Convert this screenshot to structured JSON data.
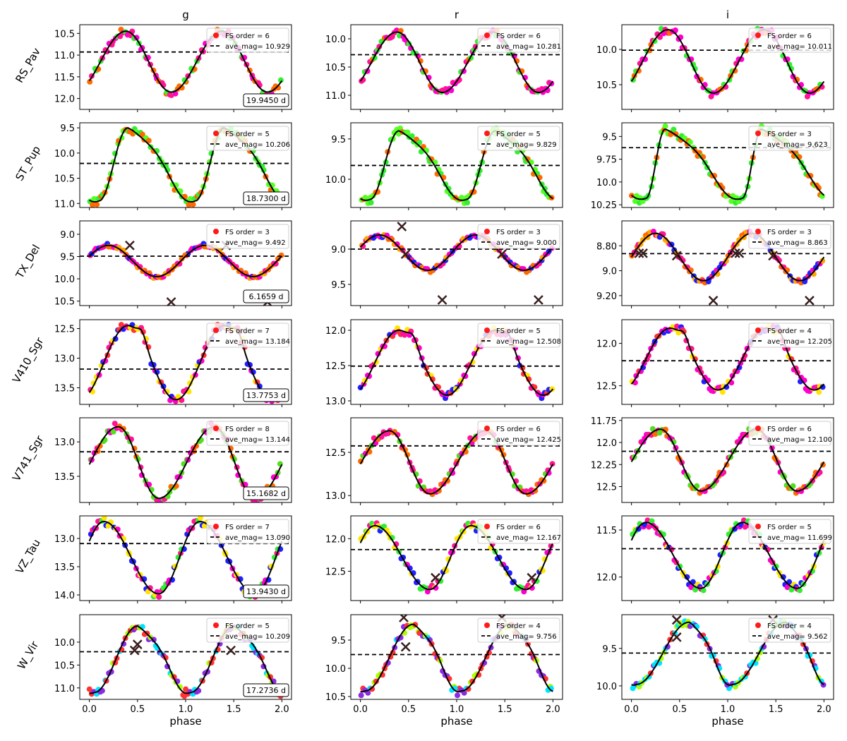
{
  "figure": {
    "xlabel": "phase"
  },
  "chart_data": {
    "type": "scatter",
    "columns": [
      "g",
      "r",
      "i"
    ],
    "rows": [
      "RS_Pav",
      "ST_Pup",
      "TX_Del",
      "V410_Sgr",
      "V741_Sgr",
      "VZ_Tau",
      "W_Vir"
    ],
    "xlabel": "phase",
    "xlim": [
      -0.1,
      2.1
    ],
    "xticks": [
      0.0,
      0.5,
      1.0,
      1.5,
      2.0
    ],
    "y_inverted": true,
    "legend_labels": [
      "FS order = ",
      "ave_mag= "
    ],
    "panels": [
      {
        "star": "RS_Pav",
        "band": "g",
        "fs_order": 6,
        "ave_mag": "10.929",
        "period": "19.9450 d",
        "ylim": [
          10.3,
          12.25
        ],
        "yticks": [
          10.5,
          11.0,
          11.5,
          12.0
        ],
        "min_mag": 10.45,
        "max_mag": 11.85,
        "min_phase": 0.38,
        "max_phase": 0.85,
        "curve": "rr",
        "colors": [
          "#ff1493",
          "#ff6a00",
          "#33ee33",
          "#ff00cc"
        ],
        "outliers": []
      },
      {
        "star": "RS_Pav",
        "band": "r",
        "fs_order": 6,
        "ave_mag": "10.281",
        "period": "",
        "ylim": [
          9.75,
          11.25
        ],
        "yticks": [
          10.0,
          10.5,
          11.0
        ],
        "min_mag": 9.88,
        "max_mag": 10.95,
        "min_phase": 0.38,
        "max_phase": 0.85,
        "curve": "rr",
        "colors": [
          "#ff1493",
          "#ff6a00",
          "#33ee33",
          "#ff00cc"
        ],
        "outliers": []
      },
      {
        "star": "RS_Pav",
        "band": "i",
        "fs_order": 6,
        "ave_mag": "10.011",
        "period": "",
        "ylim": [
          9.65,
          10.85
        ],
        "yticks": [
          10.0,
          10.5
        ],
        "min_mag": 9.72,
        "max_mag": 10.62,
        "min_phase": 0.38,
        "max_phase": 0.85,
        "curve": "rr",
        "colors": [
          "#ff1493",
          "#ff6a00",
          "#33ee33",
          "#ff00cc"
        ],
        "outliers": []
      },
      {
        "star": "ST_Pup",
        "band": "g",
        "fs_order": 5,
        "ave_mag": "10.206",
        "period": "18.7300 d",
        "ylim": [
          9.4,
          11.08
        ],
        "yticks": [
          9.5,
          10.0,
          10.5,
          11.0
        ],
        "min_mag": 9.5,
        "max_mag": 10.95,
        "min_phase": 0.4,
        "max_phase": 0.1,
        "curve": "saw",
        "colors": [
          "#33ee33",
          "#ff6a00",
          "#55ff22"
        ],
        "outliers": []
      },
      {
        "star": "ST_Pup",
        "band": "r",
        "fs_order": 5,
        "ave_mag": "9.829",
        "period": "",
        "ylim": [
          9.3,
          10.35
        ],
        "yticks": [
          9.5,
          10.0
        ],
        "min_mag": 9.4,
        "max_mag": 10.25,
        "min_phase": 0.4,
        "max_phase": 0.1,
        "curve": "saw",
        "colors": [
          "#33ee33",
          "#ff6a00",
          "#55ff22"
        ],
        "outliers": []
      },
      {
        "star": "ST_Pup",
        "band": "i",
        "fs_order": 3,
        "ave_mag": "9.623",
        "period": "",
        "ylim": [
          9.35,
          10.28
        ],
        "yticks": [
          9.5,
          9.75,
          10.0,
          10.25
        ],
        "min_mag": 9.42,
        "max_mag": 10.18,
        "min_phase": 0.35,
        "max_phase": 0.15,
        "curve": "saw",
        "colors": [
          "#33ee33",
          "#ff6a00",
          "#55ff22"
        ],
        "outliers": []
      },
      {
        "star": "TX_Del",
        "band": "g",
        "fs_order": 3,
        "ave_mag": "9.492",
        "period": "6.1659 d",
        "ylim": [
          8.7,
          10.6
        ],
        "yticks": [
          9.0,
          9.5,
          10.0,
          10.5
        ],
        "min_mag": 9.25,
        "max_mag": 9.95,
        "min_phase": 0.2,
        "max_phase": 0.85,
        "curve": "sine",
        "colors": [
          "#ff1493",
          "#ff6a00",
          "#ff00cc",
          "#ffa500",
          "#2020ff"
        ],
        "outliers": [
          [
            0.42,
            9.25
          ],
          [
            0.85,
            10.52
          ],
          [
            1.42,
            9.25
          ],
          [
            1.85,
            10.52
          ]
        ]
      },
      {
        "star": "TX_Del",
        "band": "r",
        "fs_order": 3,
        "ave_mag": "9.000",
        "period": "",
        "ylim": [
          8.6,
          9.8
        ],
        "yticks": [
          9.0,
          9.5
        ],
        "min_mag": 8.8,
        "max_mag": 9.3,
        "min_phase": 0.2,
        "max_phase": 0.85,
        "curve": "sine",
        "colors": [
          "#ff1493",
          "#ff6a00",
          "#ff00cc",
          "#ffa500",
          "#2020ff"
        ],
        "outliers": [
          [
            0.43,
            8.68
          ],
          [
            0.47,
            9.07
          ],
          [
            0.85,
            9.72
          ],
          [
            1.47,
            9.07
          ],
          [
            1.85,
            9.72
          ]
        ]
      },
      {
        "star": "TX_Del",
        "band": "i",
        "fs_order": 3,
        "ave_mag": "8.863",
        "period": "",
        "ylim": [
          8.6,
          9.28
        ],
        "yticks": [
          8.8,
          9.0,
          9.2
        ],
        "min_mag": 8.7,
        "max_mag": 9.08,
        "min_phase": 0.25,
        "max_phase": 0.85,
        "curve": "sine",
        "colors": [
          "#ff1493",
          "#ff6a00",
          "#ff00cc",
          "#ffa500",
          "#2020ff"
        ],
        "outliers": [
          [
            0.08,
            8.86
          ],
          [
            0.12,
            8.86
          ],
          [
            0.47,
            8.88
          ],
          [
            0.85,
            9.24
          ],
          [
            1.08,
            8.86
          ],
          [
            1.12,
            8.86
          ],
          [
            1.47,
            8.88
          ],
          [
            1.85,
            9.24
          ]
        ]
      },
      {
        "star": "V410_Sgr",
        "band": "g",
        "fs_order": 7,
        "ave_mag": "13.184",
        "period": "13.7753 d",
        "ylim": [
          12.35,
          13.78
        ],
        "yticks": [
          12.5,
          13.0,
          13.5
        ],
        "min_mag": 12.45,
        "max_mag": 13.7,
        "min_phase": 0.4,
        "max_phase": 0.95,
        "curve": "bump",
        "colors": [
          "#ff1493",
          "#ffe600",
          "#ff00cc",
          "#2020ff",
          "#ff3333"
        ],
        "outliers": []
      },
      {
        "star": "V410_Sgr",
        "band": "r",
        "fs_order": 5,
        "ave_mag": "12.508",
        "period": "",
        "ylim": [
          11.85,
          13.05
        ],
        "yticks": [
          12.0,
          12.5,
          13.0
        ],
        "min_mag": 12.0,
        "max_mag": 12.92,
        "min_phase": 0.4,
        "max_phase": 0.95,
        "curve": "bump",
        "colors": [
          "#ff1493",
          "#ffe600",
          "#ff00cc",
          "#2020ff",
          "#ff3333"
        ],
        "outliers": []
      },
      {
        "star": "V410_Sgr",
        "band": "i",
        "fs_order": 4,
        "ave_mag": "12.205",
        "period": "",
        "ylim": [
          11.72,
          12.72
        ],
        "yticks": [
          12.0,
          12.5
        ],
        "min_mag": 11.82,
        "max_mag": 12.55,
        "min_phase": 0.4,
        "max_phase": 0.95,
        "curve": "bump",
        "colors": [
          "#ff1493",
          "#ffe600",
          "#ff00cc",
          "#2020ff",
          "#ff3333"
        ],
        "outliers": []
      },
      {
        "star": "V741_Sgr",
        "band": "g",
        "fs_order": 8,
        "ave_mag": "13.144",
        "period": "15.1682 d",
        "ylim": [
          12.65,
          13.88
        ],
        "yticks": [
          13.0,
          13.5
        ],
        "min_mag": 12.78,
        "max_mag": 13.82,
        "min_phase": 0.3,
        "max_phase": 0.72,
        "curve": "rr",
        "colors": [
          "#ff1493",
          "#ff6a00",
          "#ff00cc",
          "#55dd22"
        ],
        "outliers": []
      },
      {
        "star": "V741_Sgr",
        "band": "r",
        "fs_order": 6,
        "ave_mag": "12.425",
        "period": "",
        "ylim": [
          12.1,
          13.08
        ],
        "yticks": [
          12.5,
          13.0
        ],
        "min_mag": 12.25,
        "max_mag": 12.98,
        "min_phase": 0.3,
        "max_phase": 0.72,
        "curve": "rr",
        "colors": [
          "#ff1493",
          "#ff6a00",
          "#ff00cc",
          "#55dd22"
        ],
        "outliers": []
      },
      {
        "star": "V741_Sgr",
        "band": "i",
        "fs_order": 6,
        "ave_mag": "12.100",
        "period": "",
        "ylim": [
          11.72,
          12.68
        ],
        "yticks": [
          11.75,
          12.0,
          12.25,
          12.5
        ],
        "min_mag": 11.85,
        "max_mag": 12.55,
        "min_phase": 0.3,
        "max_phase": 0.72,
        "curve": "rr",
        "colors": [
          "#ff1493",
          "#ff6a00",
          "#ff00cc",
          "#55dd22"
        ],
        "outliers": []
      },
      {
        "star": "VZ_Tau",
        "band": "g",
        "fs_order": 7,
        "ave_mag": "13.090",
        "period": "13.9430 d",
        "ylim": [
          12.6,
          14.1
        ],
        "yticks": [
          13.0,
          13.5,
          14.0
        ],
        "min_mag": 12.7,
        "max_mag": 13.98,
        "min_phase": 0.15,
        "max_phase": 0.72,
        "curve": "rr",
        "colors": [
          "#ff1493",
          "#ffe600",
          "#ff00cc",
          "#2020ff",
          "#33ee33"
        ],
        "outliers": []
      },
      {
        "star": "VZ_Tau",
        "band": "r",
        "fs_order": 6,
        "ave_mag": "12.167",
        "period": "",
        "ylim": [
          11.65,
          12.95
        ],
        "yticks": [
          12.0,
          12.5
        ],
        "min_mag": 11.8,
        "max_mag": 12.78,
        "min_phase": 0.15,
        "max_phase": 0.72,
        "curve": "rr",
        "colors": [
          "#ff1493",
          "#ffe600",
          "#ff00cc",
          "#2020ff",
          "#33ee33"
        ],
        "outliers": [
          [
            0.78,
            12.6
          ],
          [
            1.78,
            12.6
          ]
        ]
      },
      {
        "star": "VZ_Tau",
        "band": "i",
        "fs_order": 5,
        "ave_mag": "11.699",
        "period": "",
        "ylim": [
          11.35,
          12.25
        ],
        "yticks": [
          11.5,
          12.0
        ],
        "min_mag": 11.42,
        "max_mag": 12.12,
        "min_phase": 0.15,
        "max_phase": 0.72,
        "curve": "rr",
        "colors": [
          "#ff1493",
          "#ffe600",
          "#ff00cc",
          "#2020ff",
          "#33ee33"
        ],
        "outliers": []
      },
      {
        "star": "W_Vir",
        "band": "g",
        "fs_order": 5,
        "ave_mag": "10.209",
        "period": "17.2736 d",
        "ylim": [
          9.4,
          11.25
        ],
        "yticks": [
          10.0,
          10.5,
          11.0
        ],
        "min_mag": 9.65,
        "max_mag": 11.1,
        "min_phase": 0.5,
        "max_phase": 0.05,
        "curve": "saw",
        "colors": [
          "#8a2be2",
          "#aaff00",
          "#ff3333",
          "#00e5ff"
        ],
        "outliers": [
          [
            0.47,
            10.18
          ],
          [
            0.5,
            10.05
          ],
          [
            1.47,
            10.18
          ]
        ]
      },
      {
        "star": "W_Vir",
        "band": "r",
        "fs_order": 4,
        "ave_mag": "9.756",
        "period": "",
        "ylim": [
          9.05,
          10.55
        ],
        "yticks": [
          9.5,
          10.0,
          10.5
        ],
        "min_mag": 9.22,
        "max_mag": 10.4,
        "min_phase": 0.55,
        "max_phase": 0.05,
        "curve": "saw",
        "colors": [
          "#8a2be2",
          "#aaff00",
          "#ff3333",
          "#00e5ff"
        ],
        "outliers": [
          [
            0.45,
            9.1
          ],
          [
            0.47,
            9.62
          ],
          [
            1.47,
            9.1
          ]
        ]
      },
      {
        "star": "W_Vir",
        "band": "i",
        "fs_order": 4,
        "ave_mag": "9.562",
        "period": "",
        "ylim": [
          9.05,
          10.18
        ],
        "yticks": [
          9.5,
          10.0
        ],
        "min_mag": 9.15,
        "max_mag": 9.98,
        "min_phase": 0.6,
        "max_phase": 0.05,
        "curve": "saw",
        "colors": [
          "#8a2be2",
          "#aaff00",
          "#ff3333",
          "#00e5ff"
        ],
        "outliers": [
          [
            0.47,
            9.12
          ],
          [
            0.47,
            9.35
          ],
          [
            1.47,
            9.12
          ]
        ]
      }
    ]
  }
}
